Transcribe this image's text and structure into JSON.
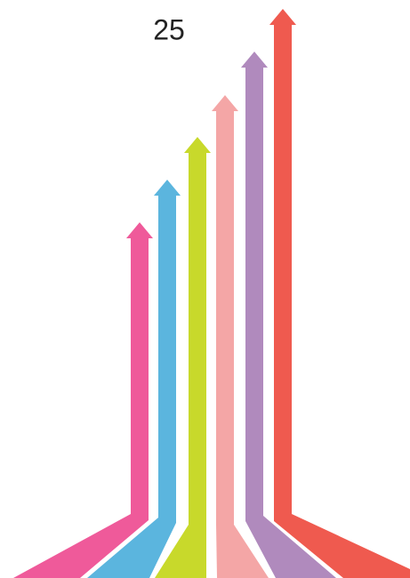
{
  "label": "25"
}
